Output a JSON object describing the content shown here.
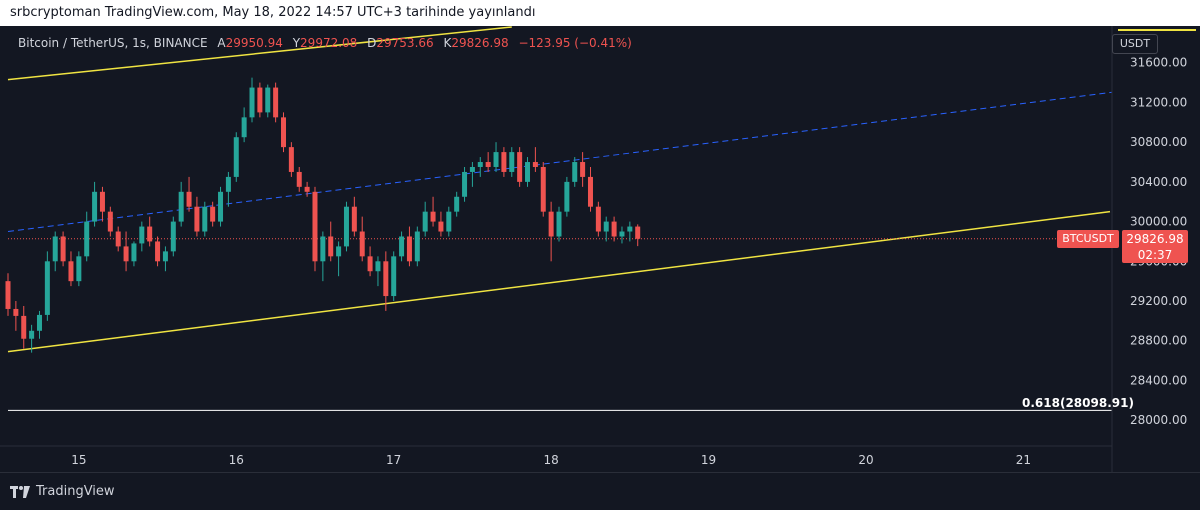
{
  "header": {
    "published_by": "srbcryptoman TradingView.com, May 18, 2022 14:57 UTC+3 tarihinde yayınlandı"
  },
  "legend": {
    "symbol": "Bitcoin / TetherUS, 1s, BINANCE",
    "open_label": "A",
    "open": "29950.94",
    "high_label": "Y",
    "high": "29972.08",
    "low_label": "D",
    "low": "29753.66",
    "close_label": "K",
    "close": "29826.98",
    "change": "−123.95 (−0.41%)"
  },
  "currency": "USDT",
  "price_tag": {
    "symbol": "BTCUSDT",
    "price": "29826.98",
    "countdown": "02:37"
  },
  "fib_label": "0.618(28098.91)",
  "footer": {
    "brand": "TradingView"
  },
  "colors": {
    "background": "#131722",
    "up": "#26a69a",
    "down": "#ef5350",
    "channel": "#f0e442",
    "midline": "#2962ff",
    "fib": "#ffffff",
    "axis_text": "#d1d4dc"
  },
  "chart_data": {
    "type": "candlestick",
    "title": "Bitcoin / TetherUS, 1s, BINANCE",
    "interval": "1h",
    "x_ticks": [
      "15",
      "16",
      "17",
      "18",
      "19",
      "20",
      "21"
    ],
    "x_range_days": [
      14.55,
      21.55
    ],
    "y_ticks": [
      "31600.00",
      "31200.00",
      "30800.00",
      "30400.00",
      "30000.00",
      "29600.00",
      "29200.00",
      "28800.00",
      "28400.00",
      "28000.00"
    ],
    "ylim": [
      27800,
      31950
    ],
    "grid": false,
    "last_price": 29826.98,
    "candles": [
      {
        "t": 14.55,
        "o": 29400,
        "h": 29480,
        "l": 29050,
        "c": 29120
      },
      {
        "t": 14.6,
        "o": 29120,
        "h": 29200,
        "l": 28900,
        "c": 29050
      },
      {
        "t": 14.65,
        "o": 29050,
        "h": 29150,
        "l": 28720,
        "c": 28820
      },
      {
        "t": 14.7,
        "o": 28820,
        "h": 28960,
        "l": 28680,
        "c": 28900
      },
      {
        "t": 14.75,
        "o": 28900,
        "h": 29100,
        "l": 28820,
        "c": 29060
      },
      {
        "t": 14.8,
        "o": 29060,
        "h": 29700,
        "l": 29000,
        "c": 29600
      },
      {
        "t": 14.85,
        "o": 29600,
        "h": 29900,
        "l": 29500,
        "c": 29850
      },
      {
        "t": 14.9,
        "o": 29850,
        "h": 29900,
        "l": 29550,
        "c": 29600
      },
      {
        "t": 14.95,
        "o": 29600,
        "h": 29700,
        "l": 29350,
        "c": 29400
      },
      {
        "t": 15.0,
        "o": 29400,
        "h": 29700,
        "l": 29350,
        "c": 29650
      },
      {
        "t": 15.05,
        "o": 29650,
        "h": 30100,
        "l": 29600,
        "c": 30000
      },
      {
        "t": 15.1,
        "o": 30000,
        "h": 30400,
        "l": 29950,
        "c": 30300
      },
      {
        "t": 15.15,
        "o": 30300,
        "h": 30350,
        "l": 30000,
        "c": 30100
      },
      {
        "t": 15.2,
        "o": 30100,
        "h": 30150,
        "l": 29850,
        "c": 29900
      },
      {
        "t": 15.25,
        "o": 29900,
        "h": 29950,
        "l": 29700,
        "c": 29750
      },
      {
        "t": 15.3,
        "o": 29750,
        "h": 29900,
        "l": 29500,
        "c": 29600
      },
      {
        "t": 15.35,
        "o": 29600,
        "h": 29800,
        "l": 29550,
        "c": 29780
      },
      {
        "t": 15.4,
        "o": 29780,
        "h": 30000,
        "l": 29700,
        "c": 29950
      },
      {
        "t": 15.45,
        "o": 29950,
        "h": 30050,
        "l": 29750,
        "c": 29800
      },
      {
        "t": 15.5,
        "o": 29800,
        "h": 29850,
        "l": 29550,
        "c": 29600
      },
      {
        "t": 15.55,
        "o": 29600,
        "h": 29750,
        "l": 29500,
        "c": 29700
      },
      {
        "t": 15.6,
        "o": 29700,
        "h": 30050,
        "l": 29650,
        "c": 30000
      },
      {
        "t": 15.65,
        "o": 30000,
        "h": 30400,
        "l": 29950,
        "c": 30300
      },
      {
        "t": 15.7,
        "o": 30300,
        "h": 30450,
        "l": 30100,
        "c": 30150
      },
      {
        "t": 15.75,
        "o": 30150,
        "h": 30250,
        "l": 29850,
        "c": 29900
      },
      {
        "t": 15.8,
        "o": 29900,
        "h": 30200,
        "l": 29850,
        "c": 30150
      },
      {
        "t": 15.85,
        "o": 30150,
        "h": 30200,
        "l": 29950,
        "c": 30000
      },
      {
        "t": 15.9,
        "o": 30000,
        "h": 30350,
        "l": 29950,
        "c": 30300
      },
      {
        "t": 15.95,
        "o": 30300,
        "h": 30500,
        "l": 30150,
        "c": 30450
      },
      {
        "t": 16.0,
        "o": 30450,
        "h": 30900,
        "l": 30400,
        "c": 30850
      },
      {
        "t": 16.05,
        "o": 30850,
        "h": 31150,
        "l": 30800,
        "c": 31050
      },
      {
        "t": 16.1,
        "o": 31050,
        "h": 31450,
        "l": 31000,
        "c": 31350
      },
      {
        "t": 16.15,
        "o": 31350,
        "h": 31400,
        "l": 31050,
        "c": 31100
      },
      {
        "t": 16.2,
        "o": 31100,
        "h": 31380,
        "l": 31050,
        "c": 31350
      },
      {
        "t": 16.25,
        "o": 31350,
        "h": 31400,
        "l": 31000,
        "c": 31050
      },
      {
        "t": 16.3,
        "o": 31050,
        "h": 31100,
        "l": 30700,
        "c": 30750
      },
      {
        "t": 16.35,
        "o": 30750,
        "h": 30800,
        "l": 30450,
        "c": 30500
      },
      {
        "t": 16.4,
        "o": 30500,
        "h": 30550,
        "l": 30300,
        "c": 30350
      },
      {
        "t": 16.45,
        "o": 30350,
        "h": 30400,
        "l": 30250,
        "c": 30300
      },
      {
        "t": 16.5,
        "o": 30300,
        "h": 30350,
        "l": 29500,
        "c": 29600
      },
      {
        "t": 16.55,
        "o": 29600,
        "h": 29900,
        "l": 29400,
        "c": 29850
      },
      {
        "t": 16.6,
        "o": 29850,
        "h": 30000,
        "l": 29600,
        "c": 29650
      },
      {
        "t": 16.65,
        "o": 29650,
        "h": 29800,
        "l": 29450,
        "c": 29750
      },
      {
        "t": 16.7,
        "o": 29750,
        "h": 30200,
        "l": 29700,
        "c": 30150
      },
      {
        "t": 16.75,
        "o": 30150,
        "h": 30250,
        "l": 29850,
        "c": 29900
      },
      {
        "t": 16.8,
        "o": 29900,
        "h": 30050,
        "l": 29600,
        "c": 29650
      },
      {
        "t": 16.85,
        "o": 29650,
        "h": 29750,
        "l": 29450,
        "c": 29500
      },
      {
        "t": 16.9,
        "o": 29500,
        "h": 29650,
        "l": 29350,
        "c": 29600
      },
      {
        "t": 16.95,
        "o": 29600,
        "h": 29700,
        "l": 29100,
        "c": 29250
      },
      {
        "t": 17.0,
        "o": 29250,
        "h": 29700,
        "l": 29200,
        "c": 29650
      },
      {
        "t": 17.05,
        "o": 29650,
        "h": 29900,
        "l": 29600,
        "c": 29850
      },
      {
        "t": 17.1,
        "o": 29850,
        "h": 29950,
        "l": 29550,
        "c": 29600
      },
      {
        "t": 17.15,
        "o": 29600,
        "h": 29950,
        "l": 29550,
        "c": 29900
      },
      {
        "t": 17.2,
        "o": 29900,
        "h": 30200,
        "l": 29850,
        "c": 30100
      },
      {
        "t": 17.25,
        "o": 30100,
        "h": 30250,
        "l": 29950,
        "c": 30000
      },
      {
        "t": 17.3,
        "o": 30000,
        "h": 30100,
        "l": 29850,
        "c": 29900
      },
      {
        "t": 17.35,
        "o": 29900,
        "h": 30150,
        "l": 29850,
        "c": 30100
      },
      {
        "t": 17.4,
        "o": 30100,
        "h": 30300,
        "l": 30050,
        "c": 30250
      },
      {
        "t": 17.45,
        "o": 30250,
        "h": 30550,
        "l": 30200,
        "c": 30500
      },
      {
        "t": 17.5,
        "o": 30500,
        "h": 30600,
        "l": 30350,
        "c": 30550
      },
      {
        "t": 17.55,
        "o": 30550,
        "h": 30650,
        "l": 30450,
        "c": 30600
      },
      {
        "t": 17.6,
        "o": 30600,
        "h": 30700,
        "l": 30500,
        "c": 30550
      },
      {
        "t": 17.65,
        "o": 30550,
        "h": 30800,
        "l": 30500,
        "c": 30700
      },
      {
        "t": 17.7,
        "o": 30700,
        "h": 30750,
        "l": 30450,
        "c": 30500
      },
      {
        "t": 17.75,
        "o": 30500,
        "h": 30750,
        "l": 30450,
        "c": 30700
      },
      {
        "t": 17.8,
        "o": 30700,
        "h": 30750,
        "l": 30350,
        "c": 30400
      },
      {
        "t": 17.85,
        "o": 30400,
        "h": 30650,
        "l": 30350,
        "c": 30600
      },
      {
        "t": 17.9,
        "o": 30600,
        "h": 30750,
        "l": 30500,
        "c": 30550
      },
      {
        "t": 17.95,
        "o": 30550,
        "h": 30600,
        "l": 30050,
        "c": 30100
      },
      {
        "t": 18.0,
        "o": 30100,
        "h": 30200,
        "l": 29600,
        "c": 29850
      },
      {
        "t": 18.05,
        "o": 29850,
        "h": 30150,
        "l": 29800,
        "c": 30100
      },
      {
        "t": 18.1,
        "o": 30100,
        "h": 30450,
        "l": 30050,
        "c": 30400
      },
      {
        "t": 18.15,
        "o": 30400,
        "h": 30650,
        "l": 30350,
        "c": 30600
      },
      {
        "t": 18.2,
        "o": 30600,
        "h": 30700,
        "l": 30350,
        "c": 30450
      },
      {
        "t": 18.25,
        "o": 30450,
        "h": 30550,
        "l": 30100,
        "c": 30150
      },
      {
        "t": 18.3,
        "o": 30150,
        "h": 30200,
        "l": 29850,
        "c": 29900
      },
      {
        "t": 18.35,
        "o": 29900,
        "h": 30050,
        "l": 29800,
        "c": 30000
      },
      {
        "t": 18.4,
        "o": 30000,
        "h": 30050,
        "l": 29800,
        "c": 29850
      },
      {
        "t": 18.45,
        "o": 29850,
        "h": 29950,
        "l": 29780,
        "c": 29900
      },
      {
        "t": 18.5,
        "o": 29900,
        "h": 30000,
        "l": 29800,
        "c": 29950
      },
      {
        "t": 18.55,
        "o": 29950,
        "h": 29972,
        "l": 29753,
        "c": 29826.98
      }
    ]
  }
}
